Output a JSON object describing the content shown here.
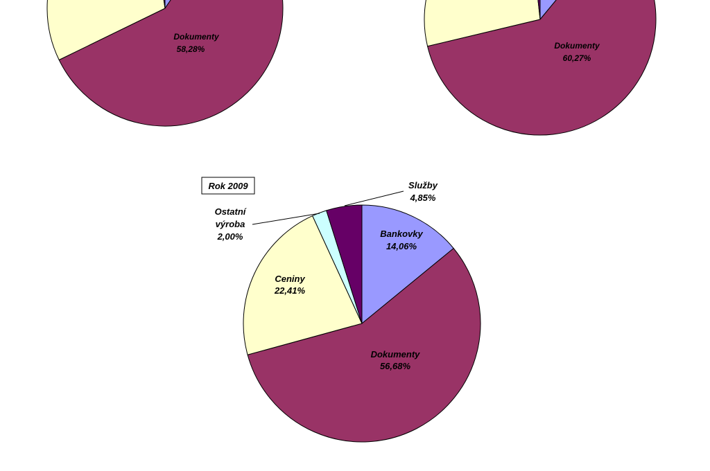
{
  "chart_data": [
    {
      "type": "pie",
      "title": "",
      "slices": [
        {
          "label": "Dokumenty",
          "value": 58.28,
          "value_label": "58,28%",
          "color": "#993366"
        },
        {
          "label": "",
          "value": 41.72,
          "value_label": "",
          "color": "#ffffcc"
        }
      ],
      "note": "partially visible (top cut off)"
    },
    {
      "type": "pie",
      "title": "",
      "slices": [
        {
          "label": "Dokumenty",
          "value": 60.27,
          "value_label": "60,27%",
          "color": "#993366"
        },
        {
          "label": "",
          "value": 39.73,
          "value_label": "",
          "color": "#ffffcc"
        }
      ],
      "note": "partially visible (top cut off)"
    },
    {
      "type": "pie",
      "title": "Rok 2009",
      "slices": [
        {
          "label": "Bankovky",
          "value": 14.06,
          "value_label": "14,06%",
          "color": "#9999ff"
        },
        {
          "label": "Dokumenty",
          "value": 56.68,
          "value_label": "56,68%",
          "color": "#993366"
        },
        {
          "label": "Ceniny",
          "value": 22.41,
          "value_label": "22,41%",
          "color": "#ffffcc"
        },
        {
          "label_lines": [
            "Ostatní",
            "výroba"
          ],
          "value": 2.0,
          "value_label": "2,00%",
          "color": "#ccffff"
        },
        {
          "label": "Služby",
          "value": 4.85,
          "value_label": "4,85%",
          "color": "#660066"
        }
      ]
    }
  ]
}
